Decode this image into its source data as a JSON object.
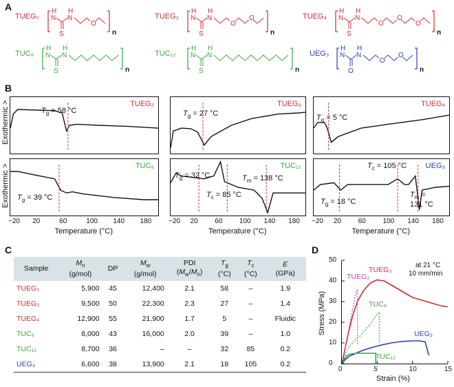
{
  "panels": {
    "A": "A",
    "B": "B",
    "C": "C",
    "D": "D"
  },
  "structures": [
    {
      "id": "tueg2",
      "name": "TUEG₂",
      "color": "red",
      "atoms": {
        "n1": "N",
        "h1": "H",
        "n2": "N",
        "h2": "H",
        "s": "S",
        "o": "O",
        "n": "n"
      }
    },
    {
      "id": "tueg3",
      "name": "TUEG₃",
      "color": "red",
      "atoms": {
        "n1": "N",
        "h1": "H",
        "n2": "N",
        "h2": "H",
        "s": "S",
        "o": "O",
        "o2": "O",
        "n": "n"
      }
    },
    {
      "id": "tueg4",
      "name": "TUEG₄",
      "color": "red",
      "atoms": {
        "n1": "N",
        "h1": "H",
        "n2": "N",
        "h2": "H",
        "s": "S",
        "o": "O",
        "o2": "O",
        "o3": "O",
        "n": "n"
      }
    },
    {
      "id": "tuc8",
      "name": "TUC₈",
      "color": "green",
      "atoms": {
        "n1": "N",
        "h1": "H",
        "n2": "N",
        "h2": "H",
        "s": "S",
        "n": "n"
      }
    },
    {
      "id": "tuc12",
      "name": "TUC₁₂",
      "color": "green",
      "atoms": {
        "n1": "N",
        "h1": "H",
        "n2": "N",
        "h2": "H",
        "s": "S",
        "n": "n"
      }
    },
    {
      "id": "ueg3",
      "name": "UEG₃",
      "color": "blue",
      "atoms": {
        "n1": "N",
        "h1": "H",
        "n2": "N",
        "h2": "H",
        "s": "O",
        "o": "O",
        "o2": "O",
        "n": "n"
      }
    }
  ],
  "dsc": {
    "ylabel": "Exothermic >",
    "xlabel": "Temperature (°C)",
    "xticks": [
      "−20",
      "20",
      "60",
      "100",
      "140",
      "180"
    ],
    "plots": [
      {
        "tag": "TUEG₂",
        "color": "#d62a2a",
        "annot": "T_g = 58 °C",
        "ann_parts": [
          "T",
          "g",
          " = 58 °C"
        ]
      },
      {
        "tag": "TUEG₃",
        "color": "#d62a2a",
        "ann_parts": [
          "T",
          "g",
          " = 27 °C"
        ]
      },
      {
        "tag": "TUEG₄",
        "color": "#d62a2a",
        "ann_parts": [
          "T",
          "g",
          " = 5 °C"
        ]
      },
      {
        "tag": "TUC₈",
        "color": "#3aa53a",
        "ann_parts": [
          "T",
          "g",
          " = 39 °C"
        ]
      },
      {
        "tag": "TUC₁₂",
        "color": "#3aa53a",
        "ann_parts": [
          "T",
          "g",
          " = 32 °C"
        ],
        "ann2": [
          "T",
          "c",
          " = 85 °C"
        ],
        "ann3": [
          "T",
          "m",
          " = 138 °C"
        ]
      },
      {
        "tag": "UEG₃",
        "color": "#2a3fb8",
        "ann_parts": [
          "T",
          "g",
          " = 18 °C"
        ],
        "ann2": [
          "T",
          "c",
          " = 105 °C"
        ],
        "ann3": [
          "T",
          "m",
          " ="
        ],
        "ann3b": "131 °C"
      }
    ]
  },
  "table": {
    "headers": [
      [
        "Sample",
        ""
      ],
      [
        "M",
        "n",
        " (g/mol)"
      ],
      [
        "DP",
        ""
      ],
      [
        "M",
        "w",
        " (g/mol)"
      ],
      [
        "PDI",
        "(M",
        "w",
        "/M",
        "n",
        ")"
      ],
      [
        "T",
        "g",
        " (°C)"
      ],
      [
        "T",
        "c",
        " (°C)"
      ],
      [
        "E",
        "(GPa)"
      ]
    ],
    "rows": [
      {
        "sample": "TUEG₂",
        "color": "#d62a2a",
        "mn": "5,900",
        "dp": "45",
        "mw": "12,400",
        "pdi": "2.1",
        "tg": "58",
        "tc": "–",
        "e": "1.9"
      },
      {
        "sample": "TUEG₃",
        "color": "#d62a2a",
        "mn": "9,500",
        "dp": "50",
        "mw": "22,300",
        "pdi": "2.3",
        "tg": "27",
        "tc": "–",
        "e": "1.4"
      },
      {
        "sample": "TUEG₄",
        "color": "#d62a2a",
        "mn": "12,900",
        "dp": "55",
        "mw": "21,900",
        "pdi": "1.7",
        "tg": "5",
        "tc": "–",
        "e": "Fluidic"
      },
      {
        "sample": "TUC₈",
        "color": "#3aa53a",
        "mn": "8,000",
        "dp": "43",
        "mw": "16,000",
        "pdi": "2.0",
        "tg": "39",
        "tc": "–",
        "e": "1.0"
      },
      {
        "sample": "TUC₁₂",
        "color": "#3aa53a",
        "mn": "8,700",
        "dp": "36",
        "mw": "–",
        "pdi": "–",
        "tg": "32",
        "tc": "85",
        "e": "0.2"
      },
      {
        "sample": "UEG₃",
        "color": "#2a3fb8",
        "mn": "6,600",
        "dp": "38",
        "mw": "13,900",
        "pdi": "2.1",
        "tg": "18",
        "tc": "105",
        "e": "0.2"
      }
    ]
  },
  "chart_data": {
    "type": "line",
    "xlabel": "Strain (%)",
    "ylabel": "Stress (MPa)",
    "xlim": [
      0,
      15
    ],
    "ylim": [
      0,
      50
    ],
    "xticks": [
      "0",
      "5",
      "10",
      "15"
    ],
    "yticks": [
      "0",
      "10",
      "20",
      "30",
      "40",
      "50"
    ],
    "annotation": [
      "at 21 °C",
      "10 mm/min"
    ],
    "series": [
      {
        "name": "TUEG₃",
        "color": "#d62a2a",
        "style": "solid",
        "points": [
          [
            0,
            0
          ],
          [
            0.5,
            8
          ],
          [
            1,
            16
          ],
          [
            1.6,
            24
          ],
          [
            2.2,
            30
          ],
          [
            3,
            35
          ],
          [
            4,
            39
          ],
          [
            5,
            40.5
          ],
          [
            6,
            40
          ],
          [
            7,
            38
          ],
          [
            8,
            36
          ],
          [
            9,
            34
          ],
          [
            10,
            32
          ],
          [
            11,
            31
          ],
          [
            12,
            30
          ],
          [
            13,
            29
          ],
          [
            14,
            28
          ],
          [
            15,
            27.5
          ]
        ]
      },
      {
        "name": "TUEG₂",
        "color": "#c040c0",
        "style": "dotted",
        "points": [
          [
            0,
            0
          ],
          [
            0.5,
            8
          ],
          [
            1,
            17
          ],
          [
            1.5,
            26
          ],
          [
            1.9,
            33
          ],
          [
            2.2,
            36
          ],
          [
            2.2,
            9
          ]
        ]
      },
      {
        "name": "TUC₈",
        "color": "#3aa53a",
        "style": "dotted",
        "points": [
          [
            0,
            0
          ],
          [
            0.5,
            5
          ],
          [
            1,
            8
          ],
          [
            1.5,
            10
          ],
          [
            2,
            12
          ],
          [
            2.5,
            13
          ],
          [
            3,
            15
          ],
          [
            4,
            19
          ],
          [
            5,
            24
          ],
          [
            5.3,
            25
          ],
          [
            5.3,
            10
          ]
        ]
      },
      {
        "name": "UEG₃",
        "color": "#2a3fb8",
        "style": "solid",
        "points": [
          [
            0,
            0
          ],
          [
            0.5,
            2
          ],
          [
            1,
            3.5
          ],
          [
            2,
            5
          ],
          [
            3,
            6.5
          ],
          [
            4,
            7.5
          ],
          [
            5,
            8.5
          ],
          [
            6,
            9.3
          ],
          [
            7,
            10
          ],
          [
            8,
            10.5
          ],
          [
            9,
            10.8
          ],
          [
            10,
            11
          ],
          [
            11,
            11
          ],
          [
            11.8,
            10.5
          ],
          [
            12.3,
            4
          ]
        ]
      },
      {
        "name": "TUC₁₂",
        "color": "#3aa53a",
        "style": "solid",
        "points": [
          [
            0,
            0
          ],
          [
            0.3,
            2
          ],
          [
            0.6,
            3.5
          ],
          [
            1,
            4.5
          ],
          [
            2,
            5
          ],
          [
            3,
            5
          ],
          [
            4,
            5
          ],
          [
            4.8,
            5
          ],
          [
            4.8,
            0
          ]
        ]
      }
    ]
  }
}
